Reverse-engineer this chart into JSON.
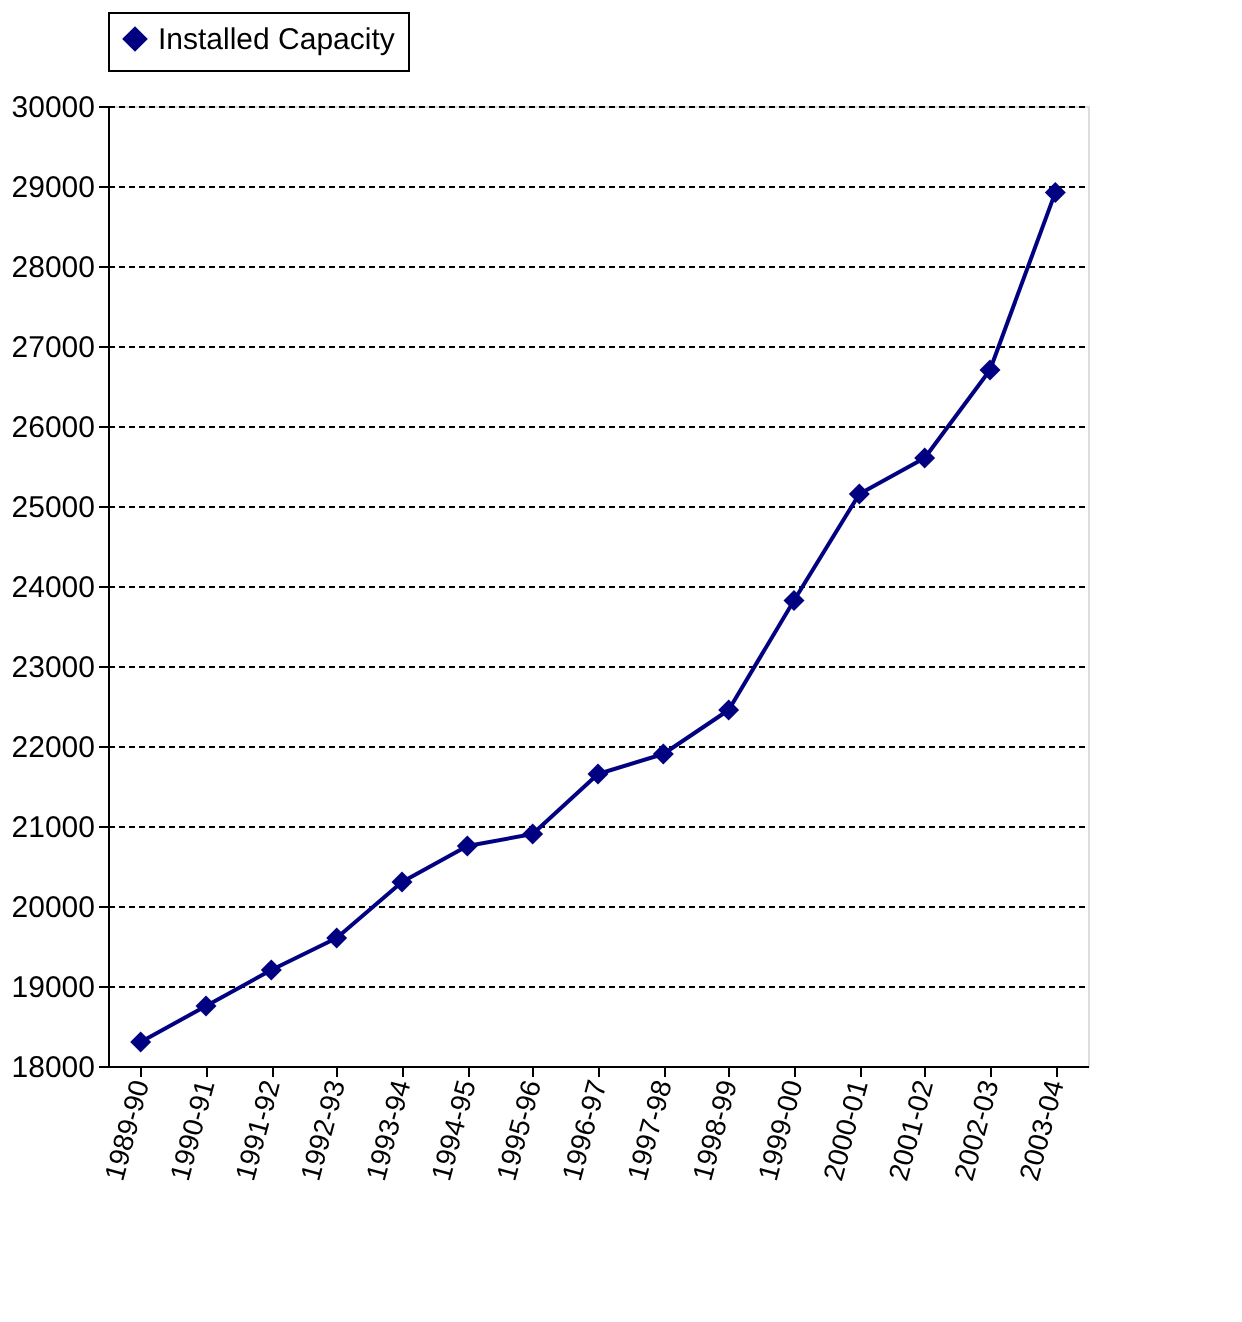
{
  "chart_data": {
    "type": "line",
    "categories": [
      "1989-90",
      "1990-91",
      "1991-92",
      "1992-93",
      "1993-94",
      "1994-95",
      "1995-96",
      "1996-97",
      "1997-98",
      "1998-99",
      "1999-00",
      "2000-01",
      "2001-02",
      "2002-03",
      "2003-04"
    ],
    "series": [
      {
        "name": "Installed Capacity",
        "color": "#000080",
        "values": [
          18300,
          18750,
          19200,
          19600,
          20300,
          20750,
          20900,
          21650,
          21900,
          22450,
          23820,
          25150,
          25600,
          26700,
          28920
        ]
      }
    ],
    "ylim": [
      18000,
      30000
    ],
    "yticks": [
      18000,
      19000,
      20000,
      21000,
      22000,
      23000,
      24000,
      25000,
      26000,
      27000,
      28000,
      29000,
      30000
    ],
    "grid": "y",
    "legend": "top",
    "marker": "diamond",
    "line_style": "solid"
  }
}
